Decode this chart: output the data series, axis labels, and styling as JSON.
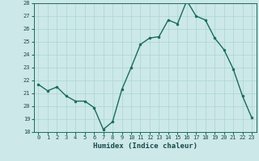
{
  "x": [
    0,
    1,
    2,
    3,
    4,
    5,
    6,
    7,
    8,
    9,
    10,
    11,
    12,
    13,
    14,
    15,
    16,
    17,
    18,
    19,
    20,
    21,
    22,
    23
  ],
  "y": [
    21.7,
    21.2,
    21.5,
    20.8,
    20.4,
    20.4,
    19.9,
    18.2,
    18.8,
    21.3,
    23.0,
    24.8,
    25.3,
    25.4,
    26.7,
    26.4,
    28.2,
    27.0,
    26.7,
    25.3,
    24.4,
    22.9,
    20.8,
    19.1
  ],
  "xlabel": "Humidex (Indice chaleur)",
  "ylim": [
    18,
    28
  ],
  "yticks": [
    18,
    19,
    20,
    21,
    22,
    23,
    24,
    25,
    26,
    27,
    28
  ],
  "xticks": [
    0,
    1,
    2,
    3,
    4,
    5,
    6,
    7,
    8,
    9,
    10,
    11,
    12,
    13,
    14,
    15,
    16,
    17,
    18,
    19,
    20,
    21,
    22,
    23
  ],
  "line_color": "#1a6b5a",
  "marker_color": "#1a6b5a",
  "bg_color": "#cce8e8",
  "grid_color": "#aad4d4",
  "tick_label_color": "#1a4a4a",
  "xlabel_color": "#1a4a4a"
}
